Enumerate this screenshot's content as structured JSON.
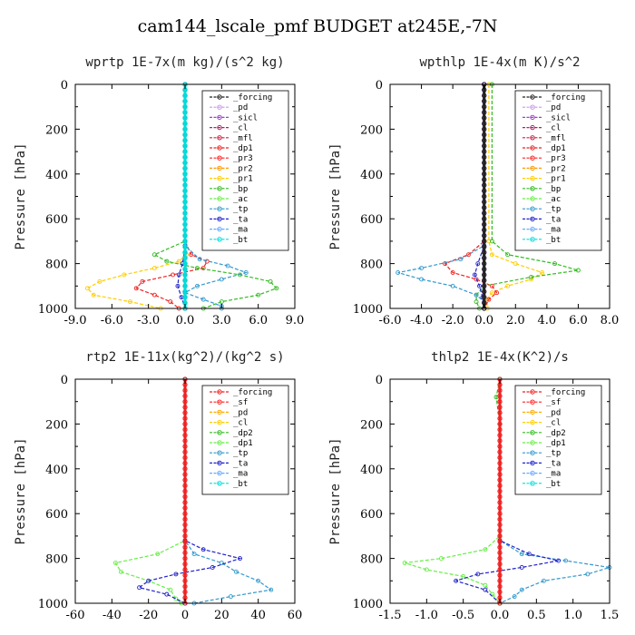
{
  "figure_title": "cam144_lscale_pmf  BUDGET at245E,-7N",
  "colors": {
    "forcing": "#222222",
    "pd": "#cc99ee",
    "sicl": "#9944cc",
    "cl": "#aa2266",
    "mfl": "#cc2244",
    "dp1": "#ee2222",
    "pr3": "#ff2222",
    "pr2": "#ff9900",
    "pr1": "#ffcc00",
    "bp": "#33bb22",
    "ac": "#66ee44",
    "tp": "#3399cc",
    "ta": "#2222cc",
    "ma": "#66aaff",
    "bt": "#00dddd"
  },
  "chart_data": [
    {
      "type": "line",
      "title": "wprtp  1E-7x(m kg)/(s^2 kg)",
      "ylabel": "Pressure [hPa]",
      "xlim": [
        -9,
        9
      ],
      "ylim": [
        1000,
        0
      ],
      "xticks": [
        "-9.0",
        "-6.0",
        "-3.0",
        "0.0",
        "3.0",
        "6.0",
        "9.0"
      ],
      "yticks": [
        "0",
        "200",
        "400",
        "600",
        "800",
        "1000"
      ],
      "legend": [
        "_forcing",
        "_pd",
        "_sicl",
        "_cl",
        "_mfl",
        "_dp1",
        "_pr3",
        "_pr2",
        "_pr1",
        "_bp",
        "_ac",
        "_tp",
        "_ta",
        "_ma",
        "_bt"
      ],
      "legend_position": "top-right",
      "series": [
        {
          "name": "_pr1",
          "color": "#ffcc00",
          "y": [
            0,
            700,
            760,
            790,
            820,
            850,
            880,
            910,
            940,
            970,
            1000
          ],
          "x": [
            0,
            0,
            0.1,
            -0.5,
            -2.5,
            -5.0,
            -7.0,
            -8.0,
            -7.5,
            -4.5,
            -2.0
          ]
        },
        {
          "name": "_dp1",
          "color": "#ee2222",
          "y": [
            0,
            700,
            760,
            790,
            820,
            850,
            880,
            910,
            940,
            970,
            1000
          ],
          "x": [
            0,
            0,
            0.5,
            1.8,
            1.5,
            -1.0,
            -3.5,
            -4.0,
            -2.5,
            -1.2,
            -0.5
          ]
        },
        {
          "name": "_bp",
          "color": "#33bb22",
          "y": [
            0,
            700,
            760,
            790,
            820,
            850,
            880,
            910,
            940,
            970,
            1000
          ],
          "x": [
            0,
            0,
            -2.5,
            -1.5,
            1.0,
            4.5,
            7.0,
            7.5,
            6.0,
            3.0,
            1.5
          ]
        },
        {
          "name": "_tp",
          "color": "#3399cc",
          "y": [
            0,
            720,
            780,
            810,
            840,
            870,
            900,
            930,
            960,
            990,
            1000
          ],
          "x": [
            0,
            0,
            1.2,
            3.5,
            5.0,
            3.0,
            1.0,
            0.0,
            1.5,
            3.0,
            3.0
          ]
        },
        {
          "name": "_ta",
          "color": "#2222cc",
          "y": [
            0,
            720,
            800,
            850,
            900,
            950,
            1000
          ],
          "x": [
            0,
            0,
            -0.2,
            -0.5,
            -0.6,
            -0.3,
            0
          ]
        },
        {
          "name": "_forcing",
          "color": "#222222",
          "y": [
            0,
            1000
          ],
          "x": [
            0,
            0
          ]
        },
        {
          "name": "_bt",
          "color": "#00dddd",
          "y": [
            0,
            1000
          ],
          "x": [
            0,
            0
          ]
        }
      ]
    },
    {
      "type": "line",
      "title": "wpthlp  1E-4x(m K)/s^2",
      "ylabel": "Pressure [hPa]",
      "xlim": [
        -6,
        8
      ],
      "ylim": [
        1000,
        0
      ],
      "xticks": [
        "-6.0",
        "-4.0",
        "-2.0",
        "0.0",
        "2.0",
        "4.0",
        "6.0",
        "8.0"
      ],
      "yticks": [
        "0",
        "200",
        "400",
        "600",
        "800",
        "1000"
      ],
      "legend": [
        "_forcing",
        "_pd",
        "_sicl",
        "_cl",
        "_mfl",
        "_dp1",
        "_pr3",
        "_pr2",
        "_pr1",
        "_bp",
        "_ac",
        "_tp",
        "_ta",
        "_ma",
        "_bt"
      ],
      "legend_position": "top-right",
      "series": [
        {
          "name": "_pr1",
          "color": "#ffcc00",
          "y": [
            0,
            700,
            760,
            800,
            840,
            870,
            900,
            930,
            960,
            1000
          ],
          "x": [
            0.3,
            0.3,
            0.5,
            2.0,
            3.7,
            3.0,
            1.5,
            0.5,
            0.2,
            0.2
          ]
        },
        {
          "name": "_dp1",
          "color": "#ee2222",
          "y": [
            0,
            700,
            760,
            800,
            840,
            870,
            900,
            930,
            960,
            1000
          ],
          "x": [
            0,
            0,
            -1.0,
            -2.5,
            -2.0,
            -0.5,
            0.5,
            0.8,
            0.3,
            0
          ]
        },
        {
          "name": "_bp",
          "color": "#33bb22",
          "y": [
            0,
            700,
            760,
            800,
            830,
            860,
            900,
            940,
            970,
            1000
          ],
          "x": [
            0.5,
            0.5,
            1.5,
            4.5,
            6.0,
            3.0,
            0.0,
            -0.5,
            -0.5,
            -0.3
          ]
        },
        {
          "name": "_tp",
          "color": "#3399cc",
          "y": [
            0,
            720,
            780,
            820,
            840,
            870,
            900,
            940,
            970,
            1000
          ],
          "x": [
            0,
            0,
            -1.5,
            -4.0,
            -5.5,
            -4.0,
            -2.0,
            -0.5,
            0,
            0
          ]
        },
        {
          "name": "_ta",
          "color": "#2222cc",
          "y": [
            0,
            720,
            800,
            850,
            900,
            950,
            1000
          ],
          "x": [
            0,
            0,
            -0.4,
            -0.6,
            -0.3,
            -0.1,
            0
          ]
        },
        {
          "name": "_sicl",
          "color": "#9944cc",
          "y": [
            0,
            1000
          ],
          "x": [
            0,
            0
          ]
        },
        {
          "name": "_forcing",
          "color": "#222222",
          "y": [
            0,
            1000
          ],
          "x": [
            0,
            0
          ]
        }
      ]
    },
    {
      "type": "line",
      "title": "rtp2  1E-11x(kg^2)/(kg^2 s)",
      "ylabel": "Pressure [hPa]",
      "xlim": [
        -60,
        60
      ],
      "ylim": [
        1000,
        0
      ],
      "xticks": [
        "-60",
        "-40",
        "-20",
        "0",
        "20",
        "40",
        "60"
      ],
      "yticks": [
        "0",
        "200",
        "400",
        "600",
        "800",
        "1000"
      ],
      "legend": [
        "_forcing",
        "_sf",
        "_pd",
        "_cl",
        "_dp2",
        "_dp1",
        "_tp",
        "_ta",
        "_ma",
        "_bt"
      ],
      "legend_position": "top-right",
      "series": [
        {
          "name": "_dp1",
          "color": "#66ee44",
          "y": [
            0,
            720,
            780,
            820,
            860,
            900,
            940,
            980,
            1000
          ],
          "x": [
            0,
            0,
            -15,
            -38,
            -35,
            -20,
            -8,
            -5,
            -2
          ]
        },
        {
          "name": "_tp",
          "color": "#3399cc",
          "y": [
            0,
            720,
            780,
            820,
            860,
            900,
            940,
            970,
            1000
          ],
          "x": [
            0,
            0,
            5,
            20,
            28,
            40,
            47,
            25,
            5
          ]
        },
        {
          "name": "_ta",
          "color": "#2222cc",
          "y": [
            0,
            720,
            760,
            800,
            840,
            870,
            900,
            930,
            960,
            1000
          ],
          "x": [
            0,
            0,
            10,
            30,
            15,
            -5,
            -20,
            -25,
            -10,
            0
          ]
        },
        {
          "name": "_forcing",
          "color": "#ee2222",
          "y": [
            0,
            1000
          ],
          "x": [
            0,
            0
          ]
        }
      ]
    },
    {
      "type": "line",
      "title": "thlp2  1E-4x(K^2)/s",
      "ylabel": "Pressure [hPa]",
      "xlim": [
        -1.5,
        1.5
      ],
      "ylim": [
        1000,
        0
      ],
      "xticks": [
        "-1.5",
        "-1.0",
        "-0.5",
        "0.0",
        "0.5",
        "1.0",
        "1.5"
      ],
      "yticks": [
        "0",
        "200",
        "400",
        "600",
        "800",
        "1000"
      ],
      "legend": [
        "_forcing",
        "_sf",
        "_pd",
        "_cl",
        "_dp2",
        "_dp1",
        "_tp",
        "_ta",
        "_ma",
        "_bt"
      ],
      "legend_position": "top-right",
      "series": [
        {
          "name": "_dp1",
          "color": "#66ee44",
          "y": [
            0,
            700,
            760,
            800,
            820,
            850,
            880,
            920,
            960,
            1000
          ],
          "x": [
            0,
            0,
            -0.2,
            -0.8,
            -1.3,
            -1.0,
            -0.5,
            -0.2,
            -0.1,
            0
          ]
        },
        {
          "name": "_tp",
          "color": "#3399cc",
          "y": [
            0,
            720,
            780,
            810,
            840,
            870,
            900,
            940,
            970,
            1000
          ],
          "x": [
            0,
            0,
            0.3,
            0.9,
            1.5,
            1.2,
            0.6,
            0.3,
            0.2,
            0
          ]
        },
        {
          "name": "_ta",
          "color": "#2222cc",
          "y": [
            0,
            720,
            780,
            810,
            840,
            870,
            900,
            940,
            1000
          ],
          "x": [
            0,
            0,
            0.4,
            0.8,
            0.3,
            -0.3,
            -0.6,
            -0.2,
            0
          ]
        },
        {
          "name": "_bp",
          "color": "#33bb22",
          "y": [
            0,
            80,
            200,
            1000
          ],
          "x": [
            0,
            -0.05,
            0,
            0
          ]
        },
        {
          "name": "_forcing",
          "color": "#ee2222",
          "y": [
            0,
            1000
          ],
          "x": [
            0,
            0
          ]
        }
      ]
    }
  ]
}
